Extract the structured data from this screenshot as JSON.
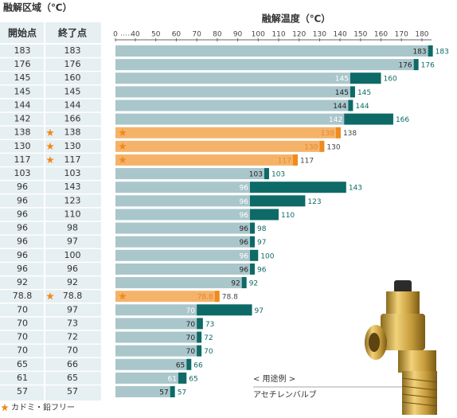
{
  "chart_data": {
    "type": "range",
    "table_title": "融解区域（℃）",
    "title": "融解温度（℃）",
    "series": [
      {
        "name": "開始点",
        "color": "#a9c6cb",
        "values": [
          183,
          176,
          145,
          145,
          144,
          142,
          138,
          130,
          117,
          103,
          96,
          96,
          96,
          96,
          96,
          96,
          96,
          92,
          78.8,
          70,
          70,
          70,
          70,
          65,
          61,
          57
        ]
      },
      {
        "name": "終了点",
        "color": "#0d6a67",
        "values": [
          183,
          176,
          160,
          145,
          144,
          166,
          138,
          130,
          117,
          103,
          143,
          123,
          110,
          98,
          97,
          100,
          96,
          92,
          78.8,
          97,
          73,
          72,
          70,
          66,
          65,
          57
        ]
      }
    ],
    "lead_free": [
      false,
      false,
      false,
      false,
      false,
      false,
      true,
      true,
      true,
      false,
      false,
      false,
      false,
      false,
      false,
      false,
      false,
      false,
      true,
      false,
      false,
      false,
      false,
      false,
      false,
      false
    ],
    "lead_free_color": "#f5b36a",
    "lead_free_marker_color": "#f08a1c",
    "legend": "カドミ・鉛フリー",
    "xlim": [
      0,
      180
    ],
    "xticks": [
      0,
      40,
      50,
      60,
      70,
      80,
      90,
      100,
      110,
      120,
      130,
      140,
      150,
      160,
      170,
      180
    ],
    "annotation": {
      "heading": "< 用途例 >",
      "label": "アセチレンバルブ"
    }
  }
}
